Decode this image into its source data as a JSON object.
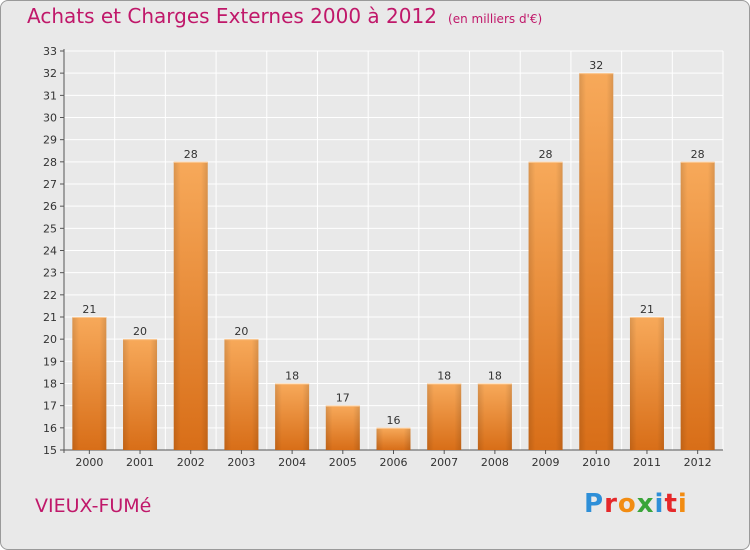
{
  "chart_title": "Achats et Charges Externes 2000 à 2012",
  "chart_unit": "(en milliers d'€)",
  "commune": "VIEUX-FUMé",
  "brand": {
    "name": "Proxiti",
    "colors": [
      "#2e8fd8",
      "#e5282a",
      "#f28c12",
      "#3aa53a",
      "#2e8fd8",
      "#e5282a",
      "#f28c12"
    ]
  },
  "colors": {
    "title": "#c0186a",
    "bar_light": "#f7a95a",
    "bar_dark": "#d86e18",
    "background": "#e9e9e9"
  },
  "chart_data": {
    "type": "bar",
    "categories": [
      "2000",
      "2001",
      "2002",
      "2003",
      "2004",
      "2005",
      "2006",
      "2007",
      "2008",
      "2009",
      "2010",
      "2011",
      "2012"
    ],
    "values": [
      21,
      20,
      28,
      20,
      18,
      17,
      16,
      18,
      18,
      28,
      32,
      21,
      28
    ],
    "title": "Achats et Charges Externes 2000 à 2012",
    "subtitle": "(en milliers d'€)",
    "ylim": [
      15,
      33
    ],
    "yticks": [
      15,
      16,
      17,
      18,
      19,
      20,
      21,
      22,
      23,
      24,
      25,
      26,
      27,
      28,
      29,
      30,
      31,
      32,
      33
    ],
    "grid": true,
    "legend": "none"
  }
}
